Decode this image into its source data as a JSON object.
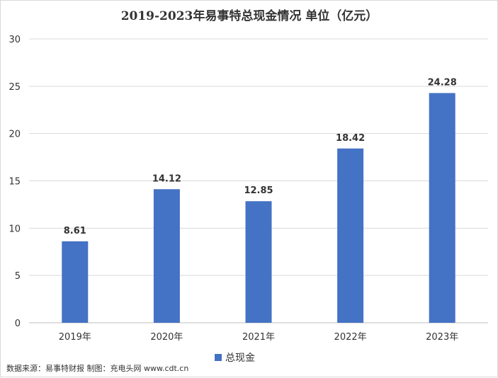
{
  "chart_data": {
    "type": "bar",
    "title": "2019-2023年易事特总现金情况  单位（亿元）",
    "categories": [
      "2019年",
      "2020年",
      "2021年",
      "2022年",
      "2023年"
    ],
    "series": [
      {
        "name": "总现金",
        "values": [
          8.61,
          14.12,
          12.85,
          18.42,
          24.28
        ]
      }
    ],
    "ylim": [
      0,
      30
    ],
    "yticks": [
      0,
      5,
      10,
      15,
      20,
      25,
      30
    ],
    "grid": true,
    "legend": "bottom-center",
    "color": "#4472c4"
  },
  "footer": {
    "source_text": "数据来源：易事特财报  制图：充电头网 www.cdt.cn"
  }
}
